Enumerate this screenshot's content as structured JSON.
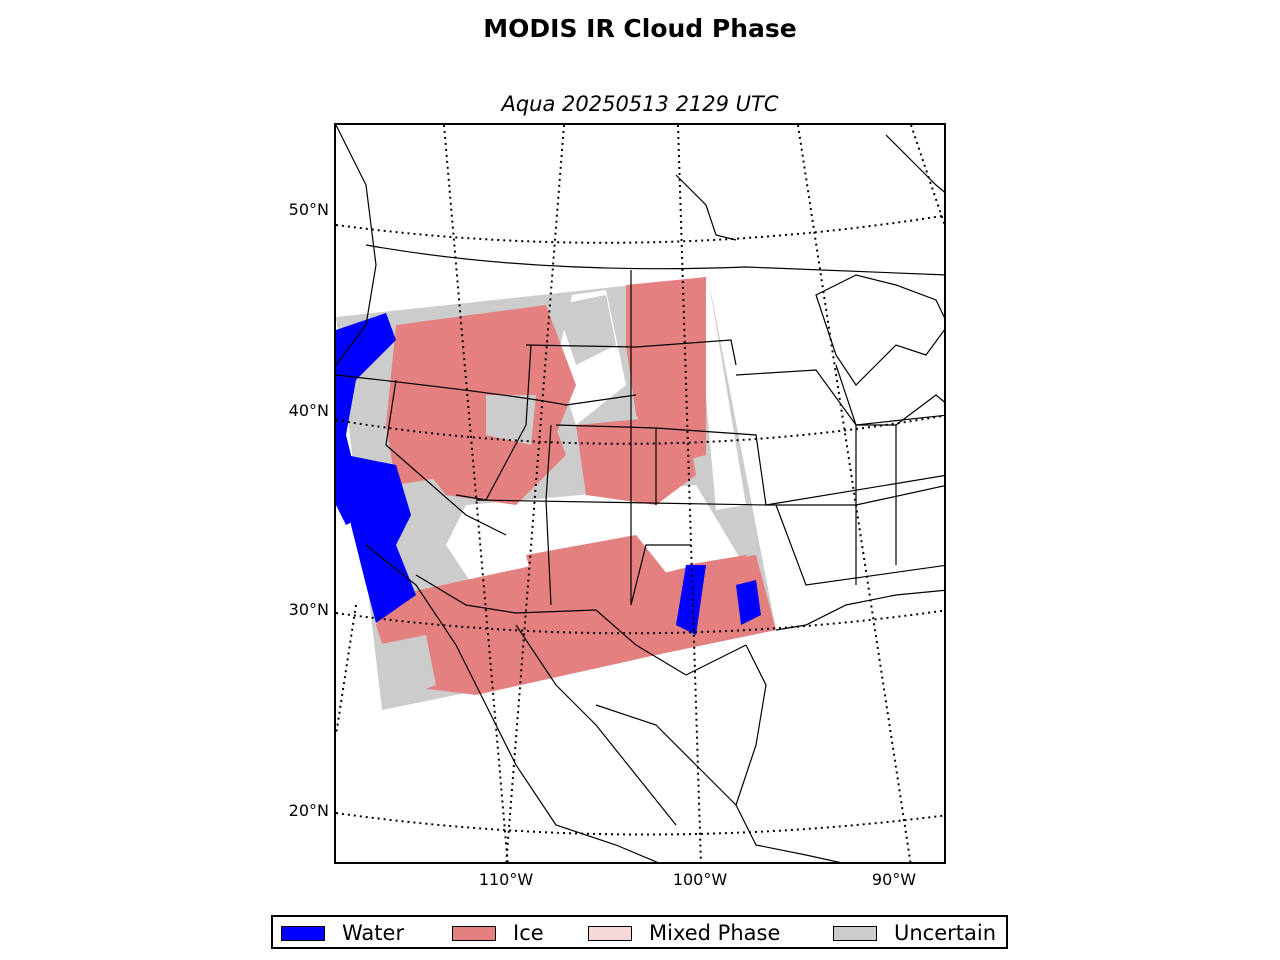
{
  "title": "MODIS IR Cloud Phase",
  "subtitle": "Aqua 20250513 2129 UTC",
  "lat_labels": [
    "50°N",
    "40°N",
    "30°N",
    "20°N"
  ],
  "lon_labels": [
    "110°W",
    "100°W",
    "90°W"
  ],
  "legend": [
    {
      "label": "Water",
      "color": "#0000ff"
    },
    {
      "label": "Ice",
      "color": "#e48080"
    },
    {
      "label": "Mixed Phase",
      "color": "#f7d8d8"
    },
    {
      "label": "Uncertain",
      "color": "#cccccc"
    }
  ]
}
